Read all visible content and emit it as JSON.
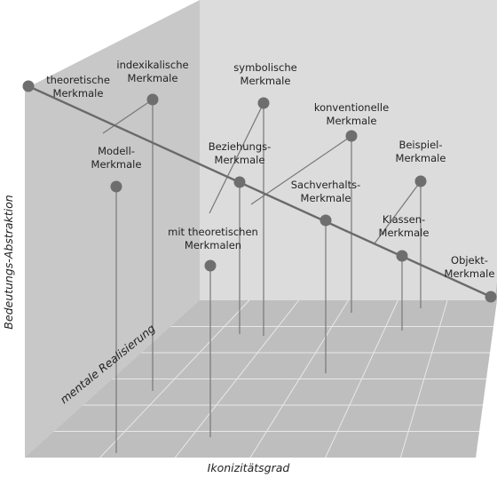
{
  "axes": {
    "x_label": "Ikonizitätsgrad",
    "y_label": "Bedeutungs-Abstraktion",
    "z_label": "mentale Realisierung"
  },
  "nodes": [
    {
      "id": "theoretische-merkmale",
      "lines": [
        "theoretische",
        "Merkmale"
      ]
    },
    {
      "id": "indexikalische-merkmale",
      "lines": [
        "indexikalische",
        "Merkmale"
      ]
    },
    {
      "id": "symbolische-merkmale",
      "lines": [
        "symbolische",
        "Merkmale"
      ]
    },
    {
      "id": "konventionelle-merkmale",
      "lines": [
        "konventionelle",
        "Merkmale"
      ]
    },
    {
      "id": "beispiel-merkmale",
      "lines": [
        "Beispiel-",
        "Merkmale"
      ]
    },
    {
      "id": "modell-merkmale",
      "lines": [
        "Modell-",
        "Merkmale"
      ]
    },
    {
      "id": "beziehungs-merkmale",
      "lines": [
        "Beziehungs-",
        "Merkmale"
      ]
    },
    {
      "id": "sachverhalts-merkmale",
      "lines": [
        "Sachverhalts-",
        "Merkmale"
      ]
    },
    {
      "id": "mit-theoretischen-merkmalen",
      "lines": [
        "mit theoretischen",
        "Merkmalen"
      ]
    },
    {
      "id": "klassen-merkmale",
      "lines": [
        "Klassen-",
        "Merkmale"
      ]
    },
    {
      "id": "objekt-merkmale",
      "lines": [
        "Objekt-",
        "Merkmale"
      ]
    }
  ],
  "colors": {
    "back_wall": "#dcdcdc",
    "left_wall": "#c8c8c8",
    "floor": "#bebebe",
    "grid": "#e8e8e8",
    "node": "#6e6e6e",
    "line": "#777777",
    "diagonal": "#6a6a6a"
  }
}
